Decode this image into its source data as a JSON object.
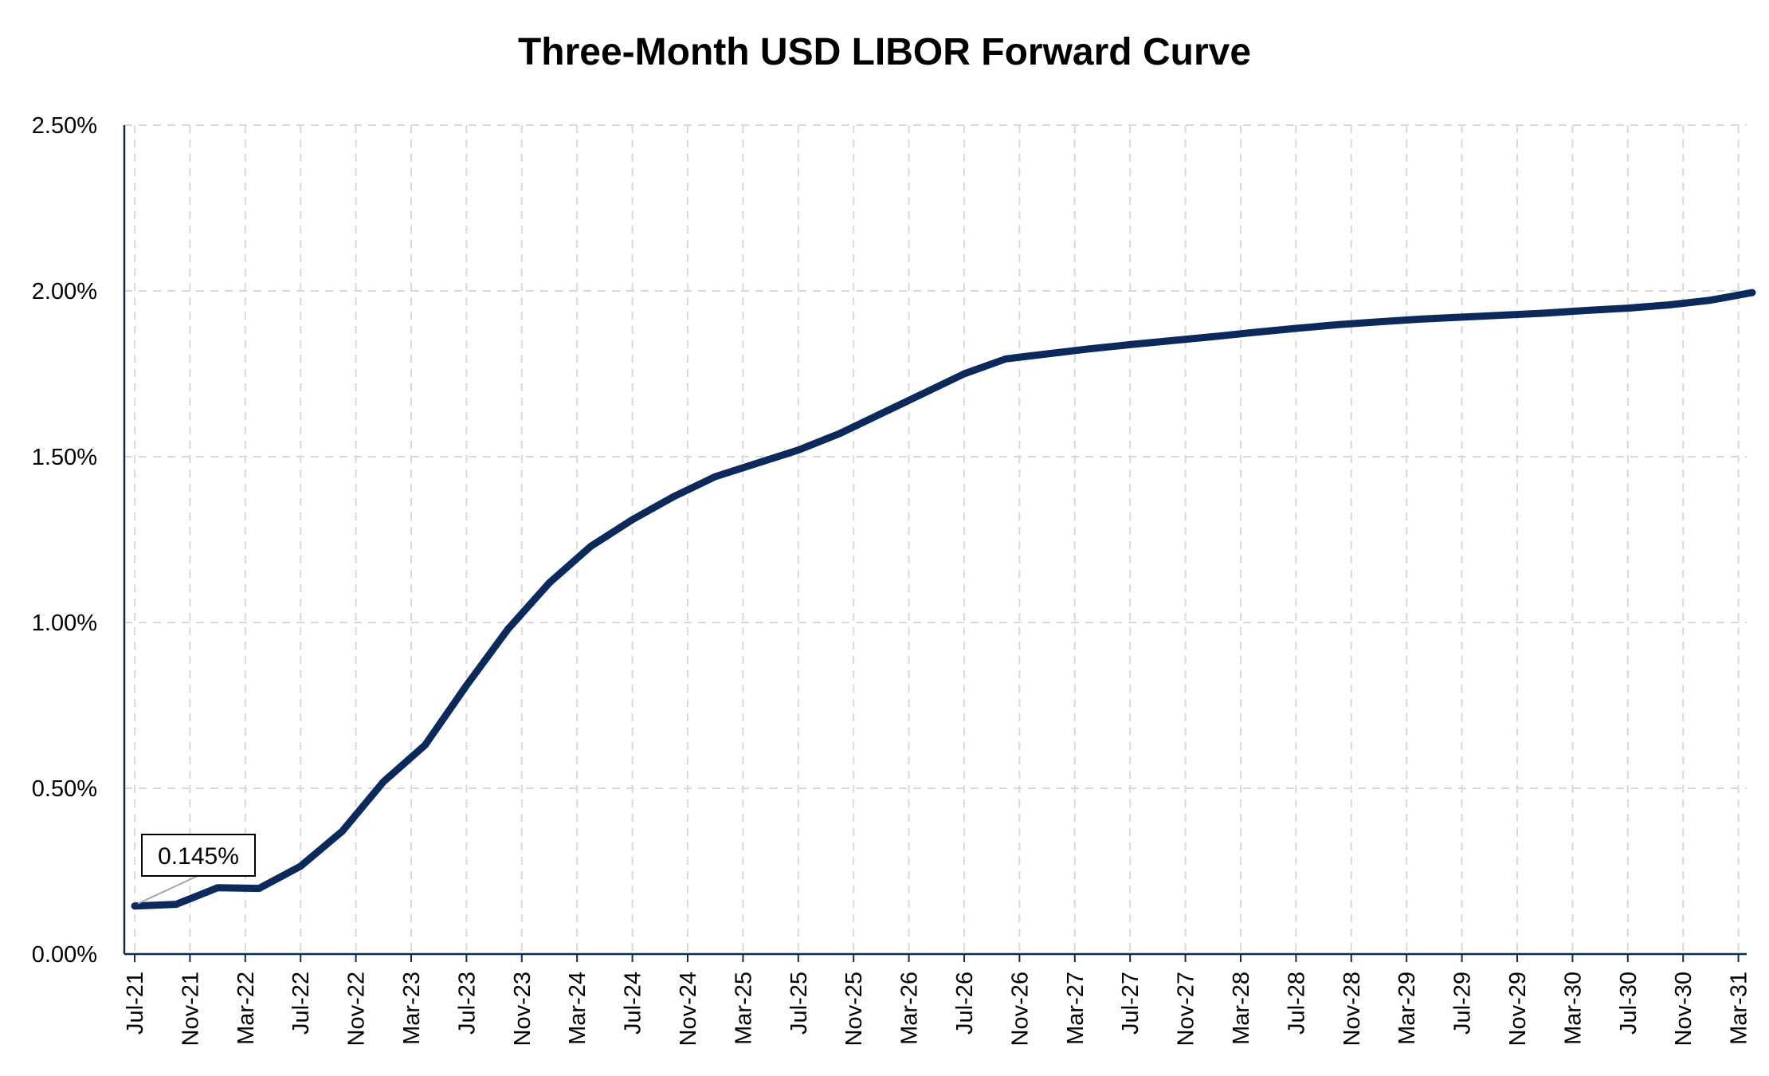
{
  "chart_data": {
    "type": "line",
    "title": "Three-Month USD LIBOR Forward Curve",
    "xlabel": "",
    "ylabel": "",
    "ylim": [
      0,
      0.025
    ],
    "y_tick_labels": [
      "0.00%",
      "0.50%",
      "1.00%",
      "1.50%",
      "2.00%",
      "2.50%"
    ],
    "y_tick_values": [
      0,
      0.005,
      0.01,
      0.015,
      0.02,
      0.025
    ],
    "x_tick_labels": [
      "Jul-21",
      "Nov-21",
      "Mar-22",
      "Jul-22",
      "Nov-22",
      "Mar-23",
      "Jul-23",
      "Nov-23",
      "Mar-24",
      "Jul-24",
      "Nov-24",
      "Mar-25",
      "Jul-25",
      "Nov-25",
      "Mar-26",
      "Jul-26",
      "Nov-26",
      "Mar-27",
      "Jul-27",
      "Nov-27",
      "Mar-28",
      "Jul-28",
      "Nov-28",
      "Mar-29",
      "Jul-29",
      "Nov-29",
      "Mar-30",
      "Jul-30",
      "Nov-30",
      "Mar-31"
    ],
    "grid": true,
    "series": [
      {
        "color": "#0b2a5b",
        "x": [
          "Jul-21",
          "Oct-21",
          "Jan-22",
          "Apr-22",
          "Jul-22",
          "Oct-22",
          "Jan-23",
          "Apr-23",
          "Jul-23",
          "Oct-23",
          "Jan-24",
          "Apr-24",
          "Jul-24",
          "Oct-24",
          "Jan-25",
          "Apr-25",
          "Jul-25",
          "Oct-25",
          "Jan-26",
          "Apr-26",
          "Jul-26",
          "Oct-26",
          "Jan-27",
          "Apr-27",
          "Jul-27",
          "Oct-27",
          "Jan-28",
          "Apr-28",
          "Jul-28",
          "Oct-28",
          "Jan-29",
          "Apr-29",
          "Jul-29",
          "Oct-29",
          "Jan-30",
          "Apr-30",
          "Jul-30",
          "Oct-30",
          "Jan-31",
          "Apr-31"
        ],
        "values": [
          0.00145,
          0.0015,
          0.002,
          0.00198,
          0.00265,
          0.0037,
          0.0052,
          0.0063,
          0.0081,
          0.0098,
          0.0112,
          0.0123,
          0.0131,
          0.0138,
          0.0144,
          0.0148,
          0.0152,
          0.0157,
          0.0163,
          0.0169,
          0.0175,
          0.01795,
          0.0181,
          0.01825,
          0.01838,
          0.0185,
          0.01862,
          0.01875,
          0.01887,
          0.01898,
          0.01907,
          0.01915,
          0.01921,
          0.01927,
          0.01933,
          0.01941,
          0.01948,
          0.01958,
          0.01972,
          0.01995
        ]
      }
    ],
    "annotations": [
      {
        "label": "0.145%",
        "x": "Jul-21",
        "value": 0.00145
      }
    ]
  }
}
